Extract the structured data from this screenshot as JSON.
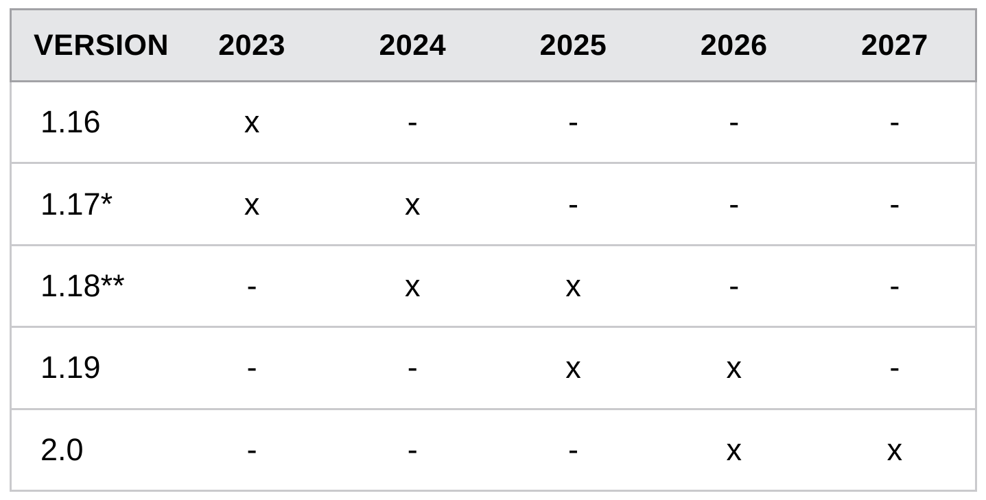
{
  "table": {
    "columns": [
      "VERSION",
      "2023",
      "2024",
      "2025",
      "2026",
      "2027"
    ],
    "rows": [
      {
        "version": "1.16",
        "cells": [
          "x",
          "-",
          "-",
          "-",
          "-"
        ]
      },
      {
        "version": "1.17*",
        "cells": [
          "x",
          "x",
          "-",
          "-",
          "-"
        ]
      },
      {
        "version": "1.18**",
        "cells": [
          "-",
          "x",
          "x",
          "-",
          "-"
        ]
      },
      {
        "version": "1.19",
        "cells": [
          "-",
          "-",
          "x",
          "x",
          "-"
        ]
      },
      {
        "version": "2.0",
        "cells": [
          "-",
          "-",
          "-",
          "x",
          "x"
        ]
      }
    ]
  },
  "colors": {
    "page_background": "#ffffff",
    "header_background": "#e5e6e8",
    "header_border": "#a2a2a6",
    "body_border": "#cacacd",
    "text": "#000000"
  }
}
